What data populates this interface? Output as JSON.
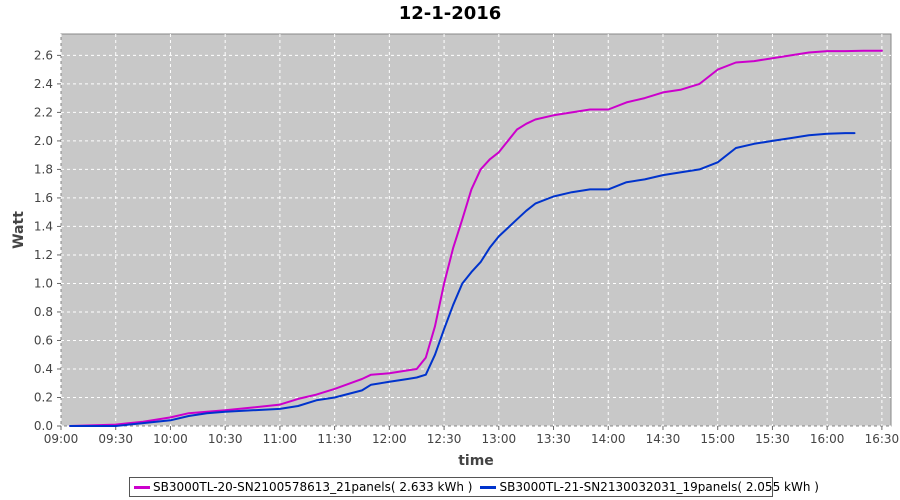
{
  "chart_data": {
    "type": "line",
    "title": "12-1-2016",
    "xlabel": "time",
    "ylabel": "Watt",
    "xlim": [
      "09:00",
      "16:35"
    ],
    "ylim": [
      0,
      2.75
    ],
    "xticks": [
      "09:00",
      "09:30",
      "10:00",
      "10:30",
      "11:00",
      "11:30",
      "12:00",
      "12:30",
      "13:00",
      "13:30",
      "14:00",
      "14:30",
      "15:00",
      "15:30",
      "16:00",
      "16:30"
    ],
    "yticks": [
      "0.0",
      "0.2",
      "0.4",
      "0.6",
      "0.8",
      "1.0",
      "1.2",
      "1.4",
      "1.6",
      "1.8",
      "2.0",
      "2.2",
      "2.4",
      "2.6"
    ],
    "grid": true,
    "legend_position": "bottom",
    "series": [
      {
        "name": "SB3000TL-20-SN2100578613_21panels( 2.633 kWh )",
        "color": "#cc00cc",
        "x": [
          "09:05",
          "09:30",
          "09:45",
          "10:00",
          "10:10",
          "10:20",
          "10:30",
          "10:45",
          "11:00",
          "11:10",
          "11:20",
          "11:30",
          "11:45",
          "11:50",
          "12:00",
          "12:10",
          "12:15",
          "12:20",
          "12:25",
          "12:30",
          "12:35",
          "12:40",
          "12:45",
          "12:50",
          "12:55",
          "13:00",
          "13:05",
          "13:10",
          "13:15",
          "13:20",
          "13:30",
          "13:40",
          "13:50",
          "14:00",
          "14:10",
          "14:20",
          "14:30",
          "14:40",
          "14:50",
          "15:00",
          "15:10",
          "15:20",
          "15:30",
          "15:40",
          "15:50",
          "16:00",
          "16:10",
          "16:20",
          "16:30"
        ],
        "y": [
          0.0,
          0.01,
          0.03,
          0.06,
          0.09,
          0.1,
          0.11,
          0.13,
          0.15,
          0.19,
          0.22,
          0.26,
          0.33,
          0.36,
          0.37,
          0.39,
          0.4,
          0.48,
          0.7,
          1.0,
          1.25,
          1.45,
          1.66,
          1.8,
          1.87,
          1.92,
          2.0,
          2.08,
          2.12,
          2.15,
          2.18,
          2.2,
          2.22,
          2.22,
          2.27,
          2.3,
          2.34,
          2.36,
          2.4,
          2.5,
          2.55,
          2.56,
          2.58,
          2.6,
          2.62,
          2.63,
          2.63,
          2.633,
          2.633
        ]
      },
      {
        "name": "SB3000TL-21-SN2130032031_19panels( 2.055 kWh )",
        "color": "#0033cc",
        "x": [
          "09:05",
          "09:30",
          "09:45",
          "10:00",
          "10:10",
          "10:20",
          "10:30",
          "10:45",
          "11:00",
          "11:10",
          "11:20",
          "11:30",
          "11:45",
          "11:50",
          "12:00",
          "12:10",
          "12:15",
          "12:20",
          "12:25",
          "12:30",
          "12:35",
          "12:40",
          "12:45",
          "12:50",
          "12:55",
          "13:00",
          "13:05",
          "13:10",
          "13:15",
          "13:20",
          "13:30",
          "13:40",
          "13:50",
          "14:00",
          "14:10",
          "14:20",
          "14:30",
          "14:40",
          "14:50",
          "15:00",
          "15:10",
          "15:20",
          "15:30",
          "15:40",
          "15:50",
          "16:00",
          "16:10",
          "16:15"
        ],
        "y": [
          0.0,
          0.0,
          0.02,
          0.04,
          0.07,
          0.09,
          0.1,
          0.11,
          0.12,
          0.14,
          0.18,
          0.2,
          0.25,
          0.29,
          0.31,
          0.33,
          0.34,
          0.36,
          0.5,
          0.68,
          0.85,
          1.0,
          1.08,
          1.15,
          1.25,
          1.33,
          1.39,
          1.45,
          1.51,
          1.56,
          1.61,
          1.64,
          1.66,
          1.66,
          1.71,
          1.73,
          1.76,
          1.78,
          1.8,
          1.85,
          1.95,
          1.98,
          2.0,
          2.02,
          2.04,
          2.05,
          2.055,
          2.055
        ]
      }
    ]
  }
}
